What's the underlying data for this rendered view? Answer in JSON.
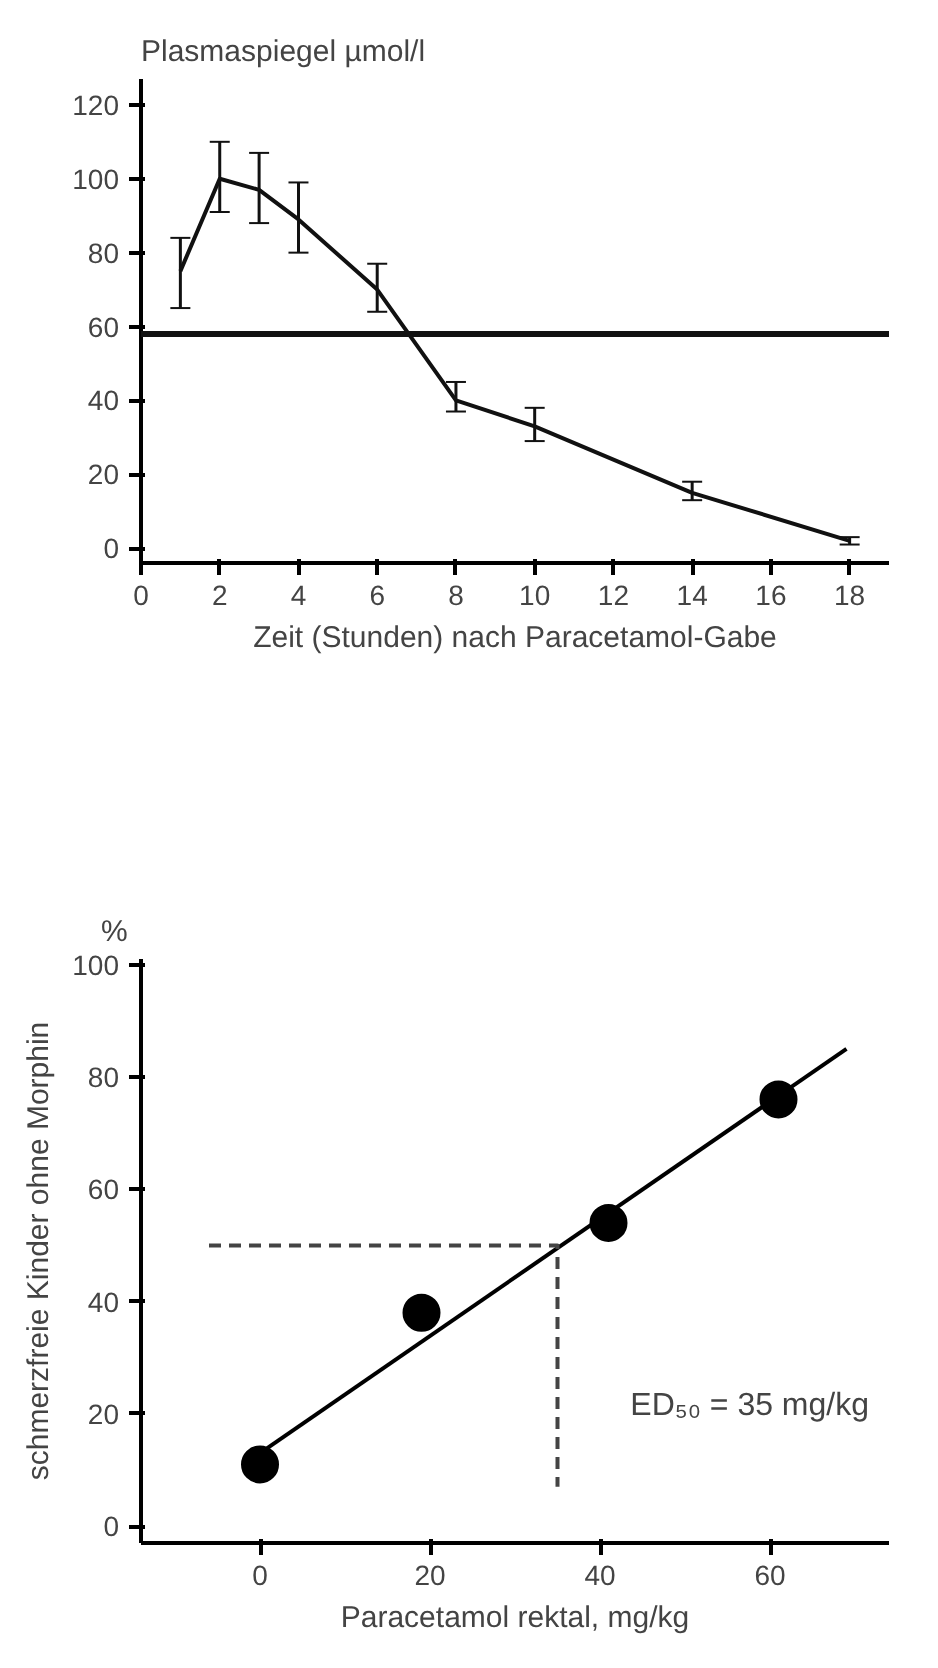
{
  "chart_data": [
    {
      "type": "line",
      "ylabel": "Plasmaspiegel µmol/l",
      "xlabel": "Zeit (Stunden) nach Paracetamol-Gabe",
      "x": [
        1,
        2,
        3,
        4,
        6,
        8,
        10,
        14,
        18
      ],
      "series": [
        {
          "color": "#111111",
          "values": [
            75,
            100,
            97,
            89,
            70,
            40,
            33,
            15,
            2
          ],
          "errors": [
            [
              65,
              84
            ],
            [
              91,
              110
            ],
            [
              88,
              107
            ],
            [
              80,
              99
            ],
            [
              64,
              77
            ],
            [
              37,
              45
            ],
            [
              29,
              38
            ],
            [
              13,
              18
            ],
            [
              1,
              3
            ]
          ]
        }
      ],
      "xlim": [
        0,
        19
      ],
      "ylim": [
        -4,
        127
      ],
      "xticks": [
        0,
        2,
        4,
        6,
        8,
        10,
        12,
        14,
        16,
        18
      ],
      "yticks": [
        0,
        20,
        40,
        60,
        80,
        100,
        120
      ],
      "ref_lines": [
        {
          "axis": "y",
          "value": 58,
          "color": "#111111"
        }
      ],
      "marker": "none",
      "grid": false
    },
    {
      "type": "scatter",
      "ylabel": "schmerzfreie Kinder ohne Morphin",
      "xlabel": "Paracetamol rektal, mg/kg",
      "annotations": [
        "%",
        "ED₅₀ = 35 mg/kg"
      ],
      "series": [
        {
          "type": "scatter",
          "color": "#000000",
          "x": [
            0,
            19,
            41,
            61
          ],
          "values": [
            11,
            38,
            54,
            76
          ]
        },
        {
          "type": "line",
          "marker": "none",
          "color": "#000000",
          "x": [
            0,
            69
          ],
          "values": [
            13,
            85
          ]
        },
        {
          "type": "line",
          "marker": "none",
          "color": "#444444",
          "line_style": "dashed",
          "x": [
            -6,
            35,
            35
          ],
          "values": [
            50,
            50,
            7
          ]
        }
      ],
      "xlim": [
        -14,
        74
      ],
      "ylim": [
        -3,
        101
      ],
      "xticks": [
        0,
        20,
        40,
        60
      ],
      "yticks": [
        0,
        20,
        40,
        60,
        80,
        100
      ],
      "marker": "circle",
      "grid": false
    }
  ]
}
